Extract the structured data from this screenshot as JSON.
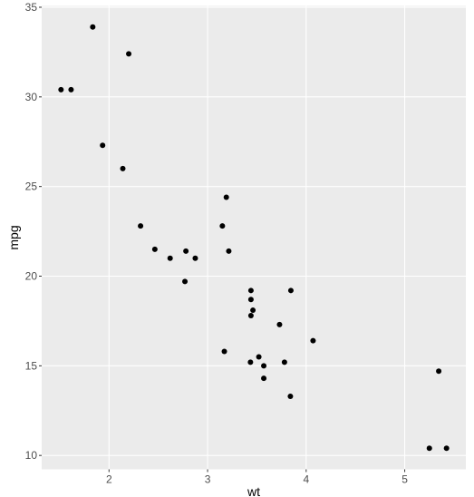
{
  "chart_data": {
    "type": "scatter",
    "x_label": "wt",
    "y_label": "mpg",
    "x": [
      2.62,
      2.875,
      2.32,
      3.215,
      3.44,
      3.46,
      3.57,
      3.19,
      3.15,
      3.44,
      3.44,
      4.07,
      3.73,
      3.78,
      5.25,
      5.424,
      5.345,
      2.2,
      1.615,
      1.835,
      2.465,
      3.52,
      3.435,
      3.84,
      3.845,
      1.935,
      2.14,
      1.513,
      3.17,
      2.77,
      3.57,
      2.78
    ],
    "values": [
      21.0,
      21.0,
      22.8,
      21.4,
      18.7,
      18.1,
      14.3,
      24.4,
      22.8,
      19.2,
      17.8,
      16.4,
      17.3,
      15.2,
      10.4,
      10.4,
      14.7,
      32.4,
      30.4,
      33.9,
      21.5,
      15.5,
      15.2,
      13.3,
      19.2,
      27.3,
      26.0,
      30.4,
      15.8,
      19.7,
      15.0,
      21.4
    ],
    "color": "#000000",
    "xlim": [
      1.317,
      5.62
    ],
    "ylim": [
      9.225,
      35.075
    ],
    "xticks": [
      2,
      3,
      4,
      5
    ],
    "yticks": [
      10,
      15,
      20,
      25,
      30,
      35
    ],
    "grid": true
  }
}
